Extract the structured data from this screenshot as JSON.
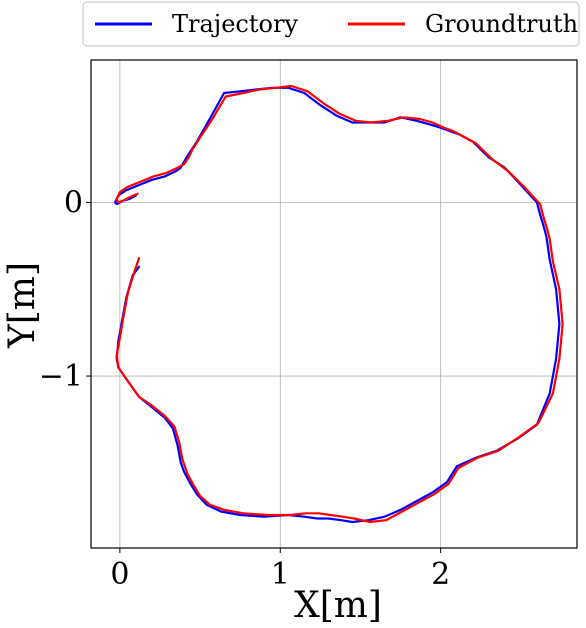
{
  "chart_data": {
    "type": "line",
    "title": "",
    "xlabel": "X[m]",
    "ylabel": "Y[m]",
    "xlim": [
      -0.18,
      2.85
    ],
    "ylim": [
      -1.99,
      0.82
    ],
    "xticks": [
      0,
      1,
      2
    ],
    "yticks": [
      0,
      -1
    ],
    "xtick_labels": [
      "0",
      "1",
      "2"
    ],
    "ytick_labels": [
      "0",
      "−1"
    ],
    "grid": true,
    "legend": {
      "placement": "top-outside",
      "ncol": 2
    },
    "series": [
      {
        "name": "Trajectory",
        "color": "#0000ff",
        "x": [
          0.12,
          0.08,
          0.04,
          0.01,
          -0.01,
          -0.02,
          -0.01,
          0.05,
          0.12,
          0.2,
          0.28,
          0.33,
          0.36,
          0.38,
          0.4,
          0.44,
          0.48,
          0.54,
          0.63,
          0.75,
          0.9,
          1.05,
          1.15,
          1.23,
          1.3,
          1.38,
          1.45,
          1.55,
          1.65,
          1.75,
          1.85,
          1.95,
          2.04,
          2.1,
          2.22,
          2.35,
          2.48,
          2.6,
          2.68,
          2.72,
          2.74,
          2.72,
          2.68,
          2.66,
          2.64,
          2.62,
          2.6,
          2.55,
          2.5,
          2.4,
          2.3,
          2.2,
          2.12,
          2.06,
          2.0,
          1.93,
          1.85,
          1.75,
          1.65,
          1.55,
          1.45,
          1.35,
          1.25,
          1.15,
          1.05,
          0.95,
          0.85,
          0.75,
          0.65,
          0.56,
          0.48,
          0.43,
          0.41,
          0.38,
          0.35,
          0.28,
          0.2,
          0.12,
          0.04,
          -0.01,
          -0.03,
          -0.02,
          0.02,
          0.06,
          0.1
        ],
        "y": [
          -0.37,
          -0.42,
          -0.55,
          -0.7,
          -0.8,
          -0.9,
          -0.95,
          -1.03,
          -1.12,
          -1.18,
          -1.24,
          -1.3,
          -1.4,
          -1.5,
          -1.55,
          -1.62,
          -1.68,
          -1.74,
          -1.78,
          -1.8,
          -1.81,
          -1.8,
          -1.81,
          -1.82,
          -1.82,
          -1.83,
          -1.84,
          -1.83,
          -1.81,
          -1.77,
          -1.72,
          -1.67,
          -1.61,
          -1.52,
          -1.47,
          -1.43,
          -1.36,
          -1.28,
          -1.1,
          -0.9,
          -0.7,
          -0.5,
          -0.33,
          -0.2,
          -0.13,
          -0.07,
          0.0,
          0.05,
          0.1,
          0.2,
          0.26,
          0.35,
          0.39,
          0.41,
          0.43,
          0.45,
          0.47,
          0.49,
          0.46,
          0.46,
          0.46,
          0.5,
          0.56,
          0.63,
          0.66,
          0.66,
          0.65,
          0.64,
          0.63,
          0.48,
          0.35,
          0.28,
          0.25,
          0.2,
          0.18,
          0.15,
          0.13,
          0.1,
          0.07,
          0.04,
          0.0,
          -0.01,
          0.01,
          0.02,
          0.04
        ]
      },
      {
        "name": "Groundtruth",
        "color": "#ff0000",
        "x": [
          0.12,
          0.09,
          0.05,
          0.02,
          0.0,
          -0.02,
          -0.01,
          0.05,
          0.12,
          0.2,
          0.28,
          0.34,
          0.37,
          0.39,
          0.42,
          0.46,
          0.5,
          0.56,
          0.65,
          0.77,
          0.92,
          1.06,
          1.16,
          1.24,
          1.31,
          1.39,
          1.46,
          1.56,
          1.66,
          1.76,
          1.86,
          1.96,
          2.05,
          2.11,
          2.23,
          2.36,
          2.49,
          2.61,
          2.7,
          2.74,
          2.76,
          2.74,
          2.7,
          2.68,
          2.66,
          2.64,
          2.62,
          2.57,
          2.52,
          2.42,
          2.32,
          2.22,
          2.14,
          2.08,
          2.02,
          1.95,
          1.87,
          1.77,
          1.67,
          1.57,
          1.47,
          1.37,
          1.27,
          1.17,
          1.07,
          0.97,
          0.87,
          0.77,
          0.66,
          0.57,
          0.49,
          0.45,
          0.43,
          0.4,
          0.36,
          0.29,
          0.21,
          0.13,
          0.05,
          0.0,
          -0.02,
          -0.01,
          0.02,
          0.06,
          0.11
        ],
        "y": [
          -0.32,
          -0.4,
          -0.52,
          -0.67,
          -0.78,
          -0.88,
          -0.95,
          -1.03,
          -1.12,
          -1.17,
          -1.23,
          -1.29,
          -1.38,
          -1.48,
          -1.56,
          -1.63,
          -1.69,
          -1.74,
          -1.77,
          -1.79,
          -1.8,
          -1.8,
          -1.79,
          -1.79,
          -1.8,
          -1.81,
          -1.82,
          -1.84,
          -1.83,
          -1.78,
          -1.73,
          -1.68,
          -1.62,
          -1.53,
          -1.47,
          -1.43,
          -1.35,
          -1.27,
          -1.1,
          -0.9,
          -0.7,
          -0.5,
          -0.34,
          -0.21,
          -0.14,
          -0.08,
          -0.01,
          0.04,
          0.09,
          0.18,
          0.25,
          0.34,
          0.38,
          0.41,
          0.43,
          0.46,
          0.48,
          0.49,
          0.47,
          0.46,
          0.47,
          0.51,
          0.57,
          0.64,
          0.67,
          0.66,
          0.65,
          0.63,
          0.61,
          0.47,
          0.36,
          0.3,
          0.26,
          0.22,
          0.2,
          0.17,
          0.15,
          0.12,
          0.09,
          0.06,
          0.02,
          0.0,
          0.01,
          0.03,
          0.05
        ]
      }
    ]
  }
}
